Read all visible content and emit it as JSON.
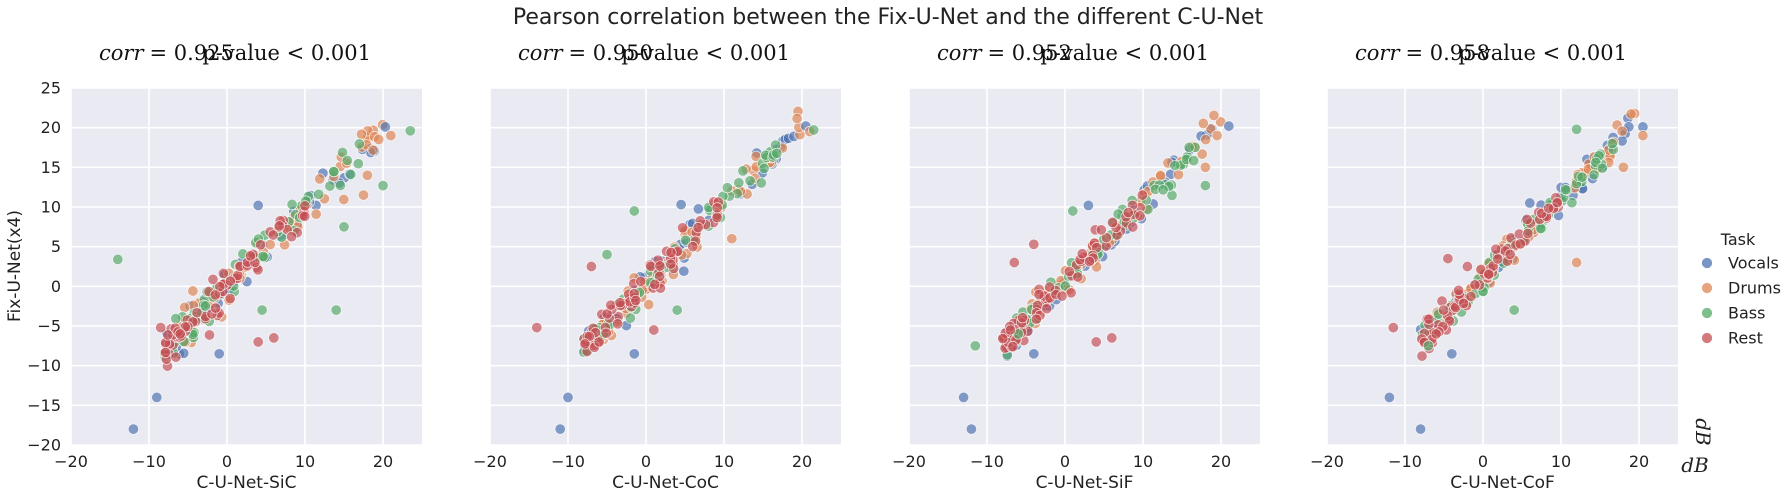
{
  "chart_data": {
    "type": "scatter",
    "title": "Pearson correlation between the Fix-U-Net and the different C-U-Net",
    "ylabel": "Fix-U-Net(x4)",
    "xlim": [
      -20,
      25
    ],
    "ylim": [
      -20,
      25
    ],
    "xticks": [
      -20,
      -10,
      0,
      10,
      20
    ],
    "yticks": [
      -20,
      -15,
      -10,
      -5,
      0,
      5,
      10,
      15,
      20,
      25
    ],
    "grid": true,
    "legend": {
      "title": "Task",
      "position": "right",
      "entries": [
        {
          "name": "Vocals",
          "color": "#4c72b0"
        },
        {
          "name": "Drums",
          "color": "#dd8452"
        },
        {
          "name": "Bass",
          "color": "#55a868"
        },
        {
          "name": "Rest",
          "color": "#c44e52"
        }
      ]
    },
    "unit_labels": [
      "dB",
      "dB"
    ],
    "panels": [
      {
        "xlabel": "C-U-Net-SiC",
        "corr_label": "corr = 0.925",
        "corr_symbol": "corr",
        "corr_value": "= 0.925",
        "pvalue_label": "p-value < 0.001",
        "shift": 0.0,
        "outliers": [
          {
            "task": "Vocals",
            "x": -12,
            "y": -18
          },
          {
            "task": "Vocals",
            "x": -9,
            "y": -14
          },
          {
            "task": "Vocals",
            "x": -1,
            "y": -8.5
          },
          {
            "task": "Vocals",
            "x": 4,
            "y": 10.2
          },
          {
            "task": "Vocals",
            "x": 20.3,
            "y": 20.1
          },
          {
            "task": "Drums",
            "x": 21,
            "y": 19
          },
          {
            "task": "Drums",
            "x": 18,
            "y": 14
          },
          {
            "task": "Drums",
            "x": 17.5,
            "y": 11.5
          },
          {
            "task": "Bass",
            "x": -14,
            "y": 3.4
          },
          {
            "task": "Bass",
            "x": 23.5,
            "y": 19.6
          },
          {
            "task": "Bass",
            "x": 14,
            "y": -3
          },
          {
            "task": "Bass",
            "x": 20,
            "y": 12.7
          },
          {
            "task": "Bass",
            "x": 15,
            "y": 7.5
          },
          {
            "task": "Bass",
            "x": 4.5,
            "y": -3
          },
          {
            "task": "Rest",
            "x": -8.5,
            "y": -5.2
          },
          {
            "task": "Rest",
            "x": 4,
            "y": -7
          },
          {
            "task": "Rest",
            "x": 6,
            "y": -6.5
          },
          {
            "task": "Rest",
            "x": -6,
            "y": -6
          }
        ]
      },
      {
        "xlabel": "C-U-Net-CoC",
        "corr_label": "corr = 0.950",
        "corr_symbol": "corr",
        "corr_value": "= 0.950",
        "pvalue_label": "p-value < 0.001",
        "shift": 0.3,
        "outliers": [
          {
            "task": "Vocals",
            "x": -11,
            "y": -18
          },
          {
            "task": "Vocals",
            "x": -10,
            "y": -14
          },
          {
            "task": "Vocals",
            "x": -1.5,
            "y": -8.5
          },
          {
            "task": "Vocals",
            "x": 4.5,
            "y": 10.3
          },
          {
            "task": "Vocals",
            "x": 20.5,
            "y": 20.2
          },
          {
            "task": "Drums",
            "x": 21,
            "y": 19.5
          },
          {
            "task": "Drums",
            "x": 11,
            "y": 6
          },
          {
            "task": "Bass",
            "x": 21.5,
            "y": 19.7
          },
          {
            "task": "Bass",
            "x": -1.5,
            "y": 9.5
          },
          {
            "task": "Bass",
            "x": -5,
            "y": 4
          },
          {
            "task": "Bass",
            "x": 4,
            "y": -3
          },
          {
            "task": "Bass",
            "x": -2,
            "y": -4
          },
          {
            "task": "Rest",
            "x": -14,
            "y": -5.2
          },
          {
            "task": "Rest",
            "x": -7,
            "y": 2.5
          },
          {
            "task": "Rest",
            "x": -6,
            "y": -7
          },
          {
            "task": "Rest",
            "x": 1,
            "y": -5.5
          }
        ]
      },
      {
        "xlabel": "C-U-Net-SiF",
        "corr_label": "corr = 0.952",
        "corr_symbol": "corr",
        "corr_value": "= 0.952",
        "pvalue_label": "p-value < 0.001",
        "shift": 0.6,
        "outliers": [
          {
            "task": "Vocals",
            "x": -13,
            "y": -14
          },
          {
            "task": "Vocals",
            "x": -12,
            "y": -18
          },
          {
            "task": "Vocals",
            "x": -4,
            "y": -8.5
          },
          {
            "task": "Vocals",
            "x": 3,
            "y": 10.2
          },
          {
            "task": "Vocals",
            "x": 21,
            "y": 20.2
          },
          {
            "task": "Drums",
            "x": 19.5,
            "y": 19
          },
          {
            "task": "Drums",
            "x": 18,
            "y": 15
          },
          {
            "task": "Bass",
            "x": 18,
            "y": 12.7
          },
          {
            "task": "Bass",
            "x": 1,
            "y": 9.5
          },
          {
            "task": "Bass",
            "x": -11.5,
            "y": -7.5
          },
          {
            "task": "Bass",
            "x": -6,
            "y": -6
          },
          {
            "task": "Rest",
            "x": -4,
            "y": 5.3
          },
          {
            "task": "Rest",
            "x": -6.5,
            "y": 3
          },
          {
            "task": "Rest",
            "x": 4,
            "y": -7
          },
          {
            "task": "Rest",
            "x": 6,
            "y": -6.5
          },
          {
            "task": "Rest",
            "x": -7,
            "y": -5.5
          }
        ]
      },
      {
        "xlabel": "C-U-Net-CoF",
        "corr_label": "corr = 0.958",
        "corr_symbol": "corr",
        "corr_value": "= 0.958",
        "pvalue_label": "p-value < 0.001",
        "shift": 1.0,
        "outliers": [
          {
            "task": "Vocals",
            "x": -12,
            "y": -14
          },
          {
            "task": "Vocals",
            "x": -8,
            "y": -18
          },
          {
            "task": "Vocals",
            "x": -4,
            "y": -8.5
          },
          {
            "task": "Vocals",
            "x": 6,
            "y": 10.5
          },
          {
            "task": "Vocals",
            "x": 20.5,
            "y": 20.1
          },
          {
            "task": "Drums",
            "x": 20.5,
            "y": 19
          },
          {
            "task": "Drums",
            "x": 18,
            "y": 15
          },
          {
            "task": "Drums",
            "x": 12,
            "y": 3
          },
          {
            "task": "Bass",
            "x": 12,
            "y": 19.8
          },
          {
            "task": "Bass",
            "x": -7,
            "y": -7.5
          },
          {
            "task": "Bass",
            "x": 4,
            "y": -3
          },
          {
            "task": "Rest",
            "x": -11.5,
            "y": -5.2
          },
          {
            "task": "Rest",
            "x": -4.5,
            "y": 3.5
          },
          {
            "task": "Rest",
            "x": -2,
            "y": 2.5
          },
          {
            "task": "Rest",
            "x": -6,
            "y": -6
          }
        ]
      }
    ]
  }
}
